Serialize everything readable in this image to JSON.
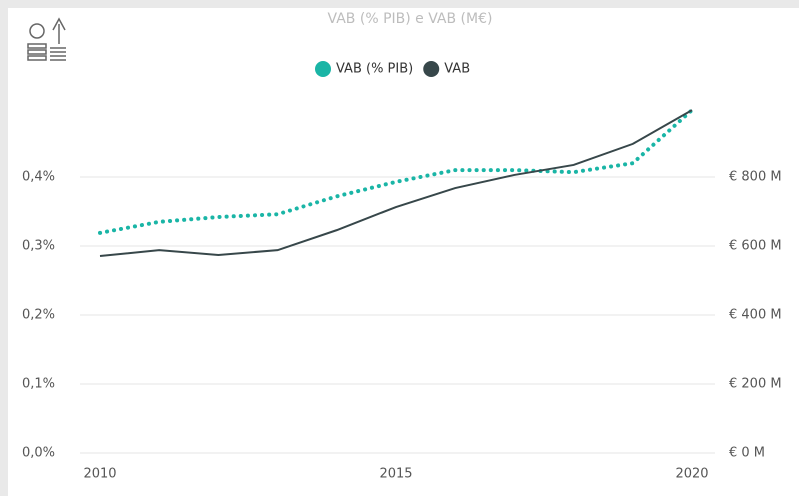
{
  "chart_data": {
    "type": "line",
    "title": "VAB (% PIB) e VAB (M€)",
    "x": [
      2010,
      2011,
      2012,
      2013,
      2014,
      2015,
      2016,
      2017,
      2018,
      2019,
      2020
    ],
    "xlim": [
      2010,
      2020
    ],
    "xticks": [
      2010,
      2015,
      2020
    ],
    "ylim": [
      0,
      0.5
    ],
    "yticks": [
      {
        "value": 0,
        "label": "0,0%"
      },
      {
        "value": 0.1,
        "label": "0,1%"
      },
      {
        "value": 0.2,
        "label": "0,2%"
      },
      {
        "value": 0.3,
        "label": "0,3%"
      },
      {
        "value": 0.4,
        "label": "0,4%"
      }
    ],
    "y2lim": [
      0,
      1000
    ],
    "y2ticks": [
      {
        "value": 0,
        "label": "€ 0 M"
      },
      {
        "value": 200,
        "label": "€ 200 M"
      },
      {
        "value": 400,
        "label": "€ 400 M"
      },
      {
        "value": 600,
        "label": "€ 600 M"
      },
      {
        "value": 800,
        "label": "€ 800 M"
      }
    ],
    "grid": true,
    "legend": "top",
    "series": [
      {
        "name": "VAB (% PIB)",
        "color": "#1ab5a6",
        "style": "dotted",
        "values": [
          0.319,
          0.335,
          0.342,
          0.346,
          0.372,
          0.393,
          0.41,
          0.41,
          0.407,
          0.42,
          0.497
        ]
      },
      {
        "name": "VAB",
        "color": "#37474a",
        "style": "solid",
        "axis": "y2",
        "values": [
          571,
          588,
          574,
          588,
          646,
          713,
          768,
          806,
          835,
          896,
          994
        ]
      }
    ]
  }
}
